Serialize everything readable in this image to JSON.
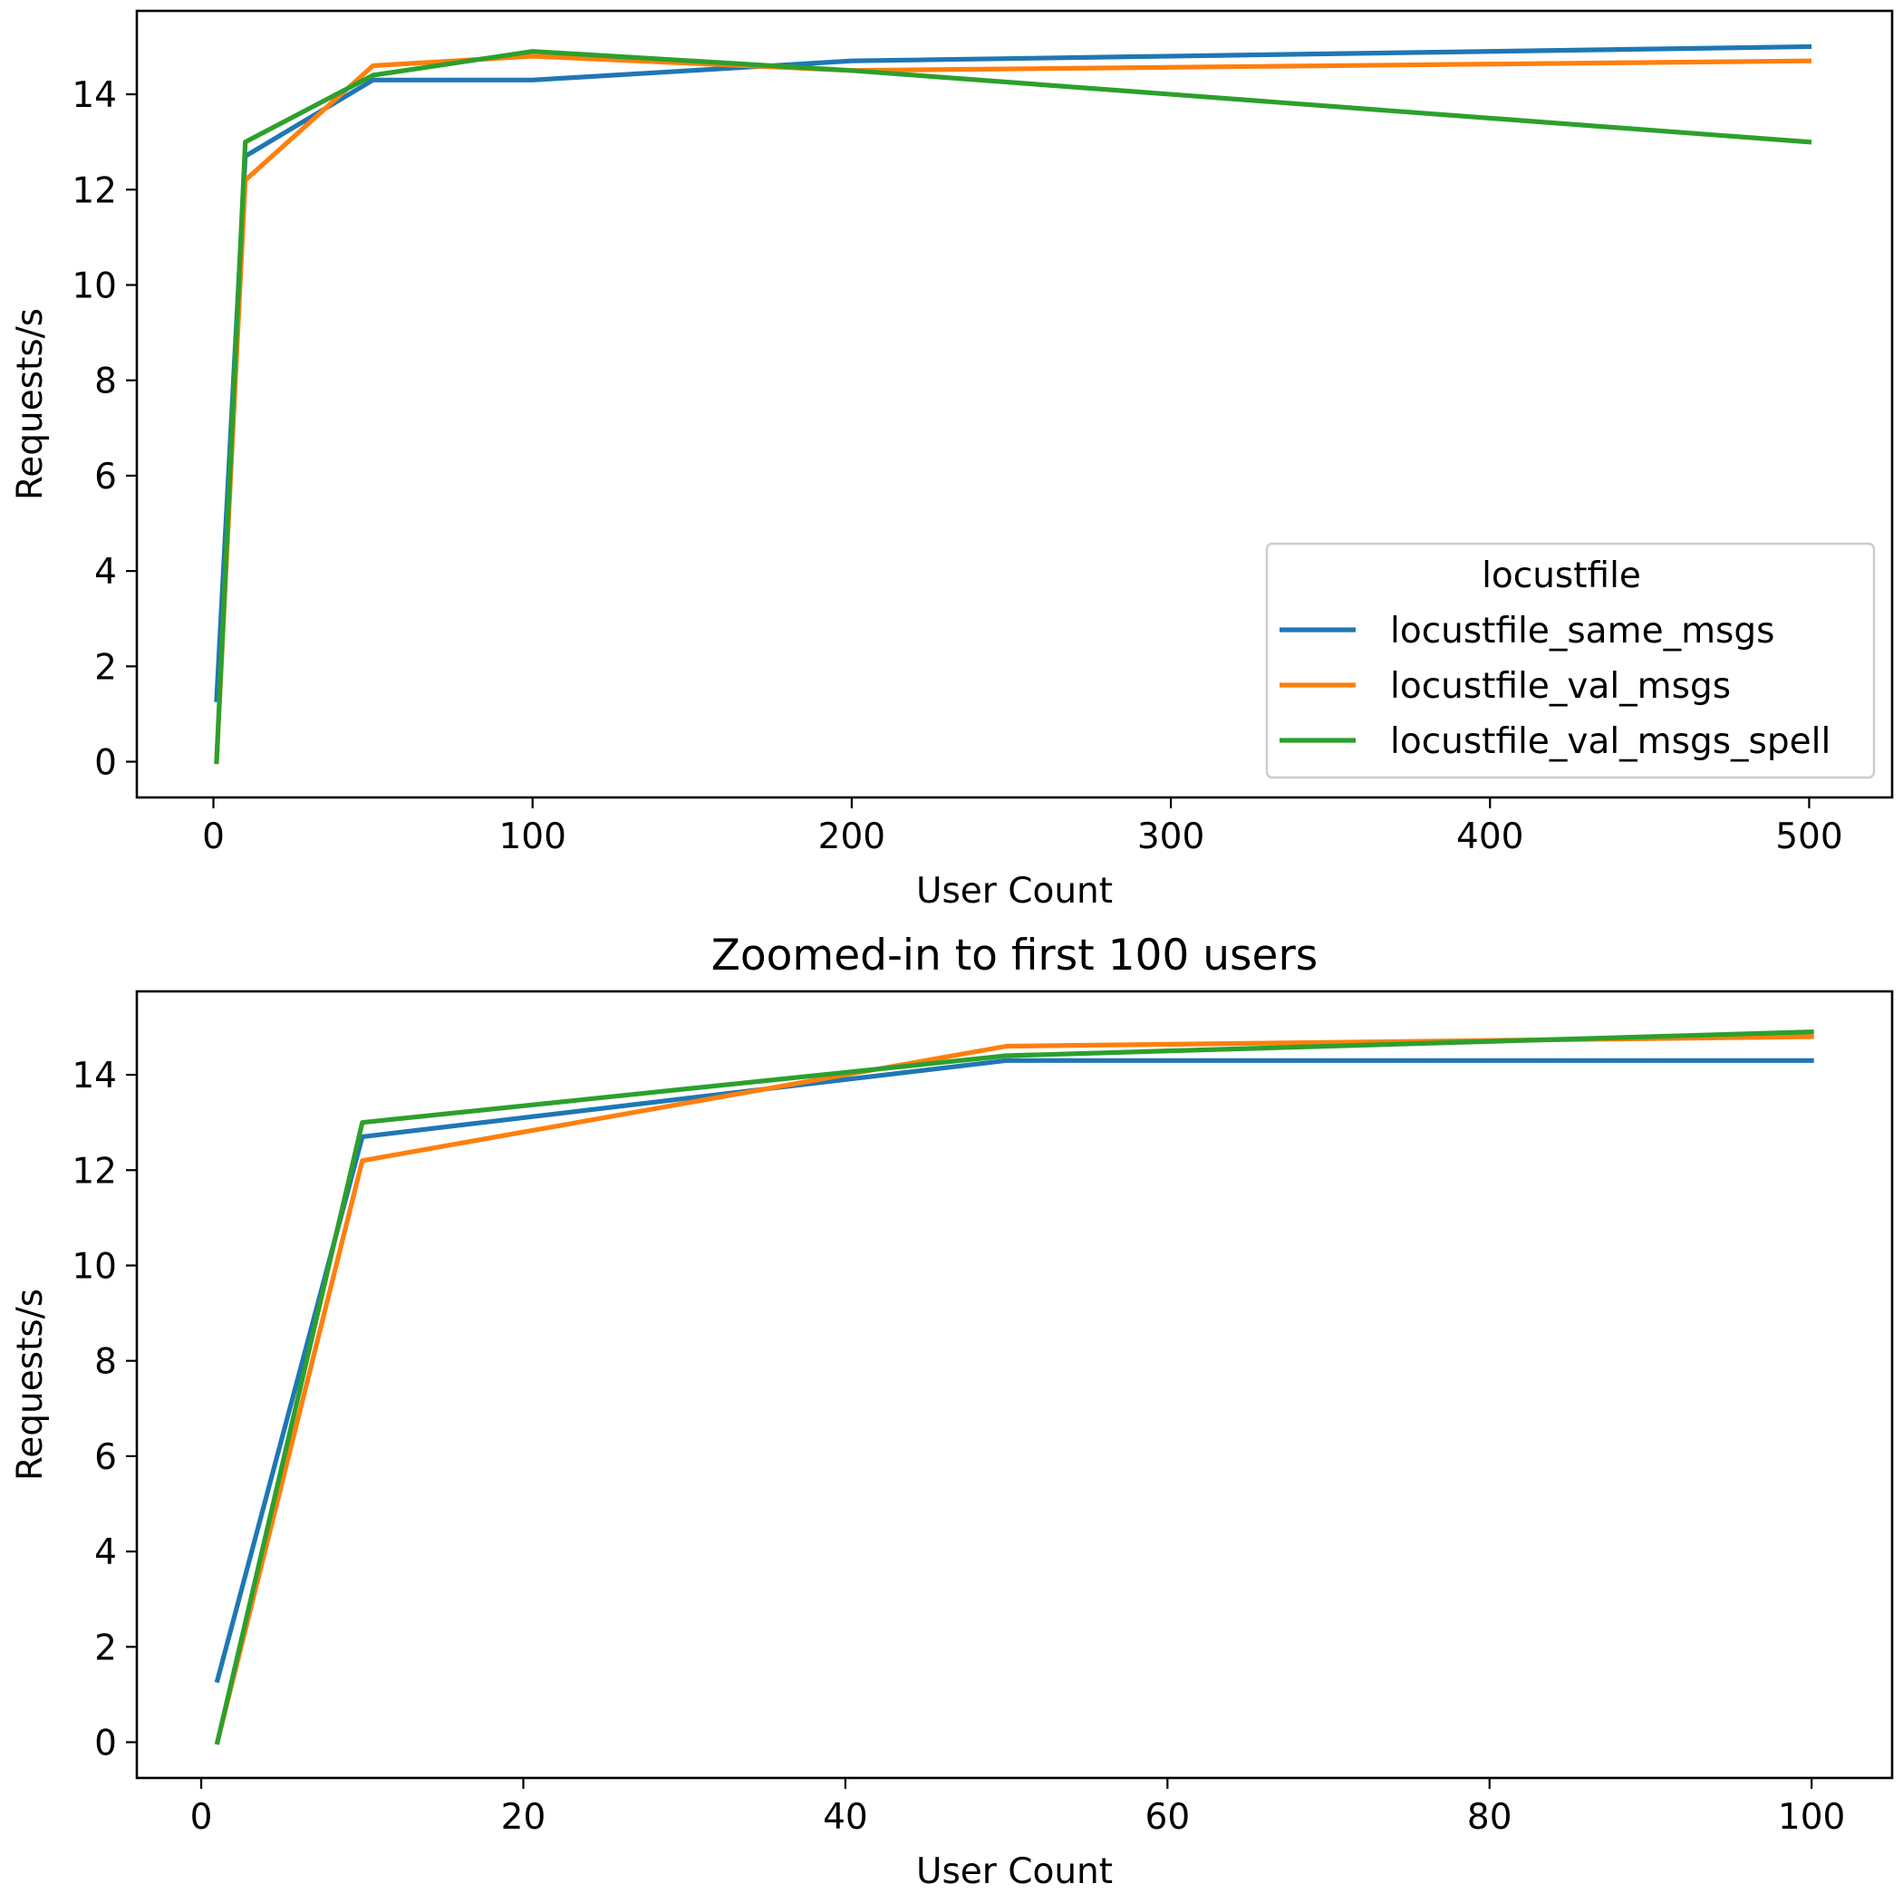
{
  "chart_data": [
    {
      "type": "line",
      "title": "",
      "xlabel": "User Count",
      "ylabel": "Requests/s",
      "xlim": [
        -24,
        526
      ],
      "ylim": [
        -0.75,
        15.75
      ],
      "xticks": [
        0,
        100,
        200,
        300,
        400,
        500
      ],
      "yticks": [
        0,
        2,
        4,
        6,
        8,
        10,
        12,
        14
      ],
      "grid": false,
      "legend": {
        "title": "locustfile",
        "placement": "lower-right"
      },
      "series": [
        {
          "name": "locustfile_same_msgs",
          "color": "#1f77b4",
          "x": [
            1,
            10,
            50,
            100,
            200,
            500
          ],
          "y": [
            1.3,
            12.7,
            14.3,
            14.3,
            14.7,
            15.0
          ]
        },
        {
          "name": "locustfile_val_msgs",
          "color": "#ff7f0e",
          "x": [
            1,
            10,
            50,
            100,
            200,
            500
          ],
          "y": [
            0.0,
            12.2,
            14.6,
            14.8,
            14.5,
            14.7
          ]
        },
        {
          "name": "locustfile_val_msgs_spell",
          "color": "#2ca02c",
          "x": [
            1,
            10,
            50,
            100,
            200,
            500
          ],
          "y": [
            0.0,
            13.0,
            14.4,
            14.9,
            14.5,
            13.0
          ]
        }
      ]
    },
    {
      "type": "line",
      "title": "Zoomed-in to first 100 users",
      "xlabel": "User Count",
      "ylabel": "Requests/s",
      "xlim": [
        -4,
        105
      ],
      "ylim": [
        -0.75,
        15.75
      ],
      "xticks": [
        0,
        20,
        40,
        60,
        80,
        100
      ],
      "yticks": [
        0,
        2,
        4,
        6,
        8,
        10,
        12,
        14
      ],
      "grid": false,
      "series": [
        {
          "color": "#1f77b4",
          "x": [
            1,
            10,
            50,
            100
          ],
          "y": [
            1.3,
            12.7,
            14.3,
            14.3
          ]
        },
        {
          "color": "#ff7f0e",
          "x": [
            1,
            10,
            50,
            100
          ],
          "y": [
            0.0,
            12.2,
            14.6,
            14.8
          ]
        },
        {
          "color": "#2ca02c",
          "x": [
            1,
            10,
            50,
            100
          ],
          "y": [
            0.0,
            13.0,
            14.4,
            14.9
          ]
        }
      ]
    }
  ]
}
